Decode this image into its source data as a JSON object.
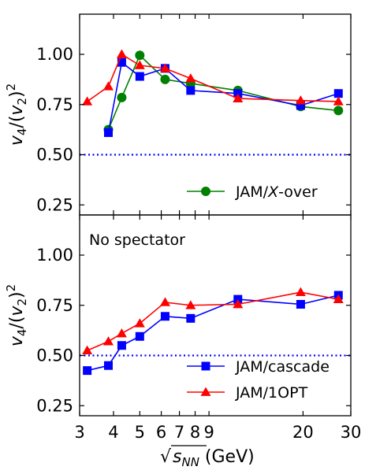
{
  "chart_data": {
    "type": "line",
    "x_scale": "log",
    "xlim": [
      3,
      30
    ],
    "x_ticks": [
      3,
      4,
      5,
      6,
      7,
      8,
      9,
      20,
      30
    ],
    "x_tick_labels": [
      "3",
      "4",
      "5",
      "6",
      "7",
      "8",
      "9",
      "20",
      "30"
    ],
    "xlabel": "√s_NN (GeV)",
    "panels": [
      {
        "id": "top",
        "ylim": [
          0.2,
          1.2
        ],
        "y_ticks": [
          0.25,
          0.5,
          0.75,
          1.0
        ],
        "y_tick_labels": [
          "0.25",
          "0.50",
          "0.75",
          "1.00"
        ],
        "ylabel": "v4/(v2)^2",
        "reference_line": 0.5,
        "annotation": "",
        "series": [
          {
            "name": "JAM/X-over",
            "color": "#008000",
            "marker": "circle",
            "x": [
              3.83,
              4.29,
              5.0,
              6.2,
              7.7,
              11.5,
              19.6,
              27.0
            ],
            "y": [
              0.625,
              0.785,
              0.995,
              0.875,
              0.855,
              0.82,
              0.74,
              0.72
            ]
          },
          {
            "name": "JAM/cascade",
            "color": "#0000ff",
            "marker": "square",
            "x": [
              3.83,
              4.29,
              5.0,
              6.2,
              7.7,
              11.5,
              19.6,
              27.0
            ],
            "y": [
              0.61,
              0.96,
              0.89,
              0.93,
              0.82,
              0.805,
              0.745,
              0.805
            ]
          },
          {
            "name": "JAM/1OPT",
            "color": "#ff0000",
            "marker": "triangle",
            "x": [
              3.2,
              3.83,
              4.29,
              5.0,
              6.2,
              7.7,
              11.5,
              19.6,
              27.0
            ],
            "y": [
              0.765,
              0.84,
              1.0,
              0.945,
              0.93,
              0.88,
              0.78,
              0.77,
              0.765
            ]
          }
        ],
        "legend": {
          "placement": "lower-right",
          "entries": [
            "JAM/X-over"
          ]
        }
      },
      {
        "id": "bottom",
        "ylim": [
          0.2,
          1.2
        ],
        "y_ticks": [
          0.25,
          0.5,
          0.75,
          1.0
        ],
        "y_tick_labels": [
          "0.25",
          "0.50",
          "0.75",
          "1.00"
        ],
        "ylabel": "v4/(v2)^2",
        "reference_line": 0.5,
        "annotation": "No spectator",
        "series": [
          {
            "name": "JAM/cascade",
            "color": "#0000ff",
            "marker": "square",
            "x": [
              3.2,
              3.83,
              4.29,
              5.0,
              6.2,
              7.7,
              11.5,
              19.6,
              27.0
            ],
            "y": [
              0.425,
              0.45,
              0.55,
              0.595,
              0.695,
              0.685,
              0.78,
              0.755,
              0.8
            ]
          },
          {
            "name": "JAM/1OPT",
            "color": "#ff0000",
            "marker": "triangle",
            "x": [
              3.2,
              3.83,
              4.29,
              5.0,
              6.2,
              7.7,
              11.5,
              19.6,
              27.0
            ],
            "y": [
              0.525,
              0.57,
              0.61,
              0.66,
              0.765,
              0.75,
              0.755,
              0.815,
              0.78
            ]
          }
        ],
        "legend": {
          "placement": "lower-right",
          "entries": [
            "JAM/cascade",
            "JAM/1OPT"
          ]
        }
      }
    ]
  }
}
